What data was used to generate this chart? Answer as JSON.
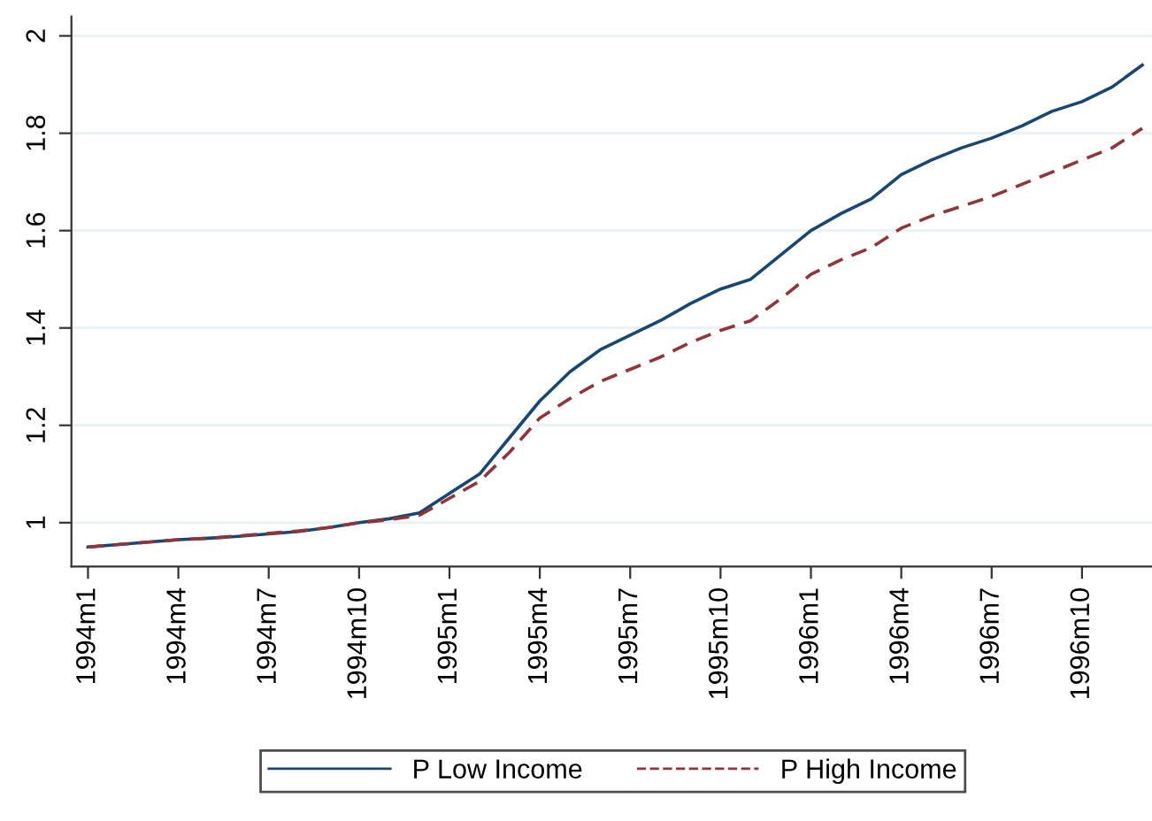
{
  "chart_data": {
    "type": "line",
    "categories": [
      "1994m1",
      null,
      null,
      "1994m4",
      null,
      null,
      "1994m7",
      null,
      null,
      "1994m10",
      null,
      null,
      "1995m1",
      null,
      null,
      "1995m4",
      null,
      null,
      "1995m7",
      null,
      null,
      "1995m10",
      null,
      null,
      "1996m1",
      null,
      null,
      "1996m4",
      null,
      null,
      "1996m7",
      null,
      null,
      "1996m10",
      null,
      null
    ],
    "series": [
      {
        "name": "P Low Income",
        "color": "#1a476f",
        "line_style": "solid",
        "values": [
          0.95,
          0.955,
          0.96,
          0.965,
          0.968,
          0.972,
          0.977,
          0.982,
          0.99,
          1.0,
          1.008,
          1.02,
          1.06,
          1.1,
          1.175,
          1.25,
          1.31,
          1.355,
          1.385,
          1.415,
          1.45,
          1.48,
          1.5,
          1.55,
          1.6,
          1.635,
          1.665,
          1.715,
          1.745,
          1.77,
          1.79,
          1.815,
          1.845,
          1.865,
          1.895,
          1.94
        ]
      },
      {
        "name": "P High Income",
        "color": "#90353b",
        "line_style": "dashed",
        "values": [
          0.95,
          0.955,
          0.96,
          0.965,
          0.968,
          0.973,
          0.978,
          0.983,
          0.99,
          1.0,
          1.006,
          1.015,
          1.05,
          1.085,
          1.145,
          1.215,
          1.255,
          1.29,
          1.315,
          1.34,
          1.37,
          1.395,
          1.415,
          1.46,
          1.51,
          1.54,
          1.565,
          1.605,
          1.63,
          1.65,
          1.67,
          1.695,
          1.72,
          1.745,
          1.77,
          1.81
        ]
      }
    ],
    "ylim": [
      0.91,
      2.04
    ],
    "yticks": [
      1,
      1.2,
      1.4,
      1.6,
      1.8,
      2
    ],
    "grid": "y",
    "legend": "bottom",
    "marker": "none"
  }
}
